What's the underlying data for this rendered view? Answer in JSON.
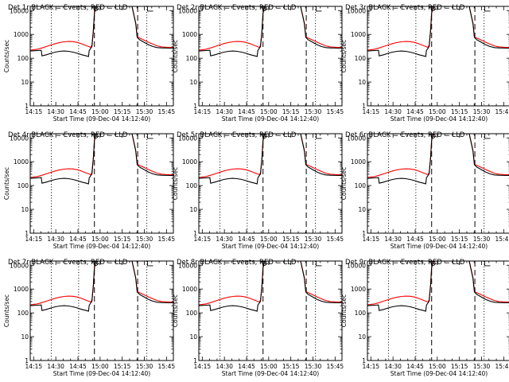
{
  "figure": {
    "panels": [
      "Det 1r",
      "Det 2r",
      "Det 3r",
      "Det 4r",
      "Det 5r",
      "Det 6r",
      "Det 7r",
      "Det 8r",
      "Det 9r"
    ],
    "title_suffix": "BLACK = Events, RED = LLD",
    "ylabel": "Counts/sec",
    "xlabel": "Start Time (09-Dec-04 14:12:40)",
    "xticks": [
      "14:15",
      "14:30",
      "14:45",
      "15:00",
      "15:15",
      "15:30",
      "15:45"
    ],
    "yticks": [
      "1",
      "10",
      "100",
      "1000",
      "10000"
    ],
    "colors": {
      "events": "#000000",
      "lld": "#ff0000",
      "axes": "#000000"
    }
  },
  "chart_data": {
    "type": "line",
    "layout": "3x3 grid of identical panels",
    "title_template": "Det Nr BLACK = Events, RED = LLD",
    "xlabel": "Start Time (09-Dec-04 14:12:40)",
    "ylabel": "Counts/sec",
    "x_units": "minutes since 14:12:40",
    "xlim": [
      0,
      97
    ],
    "ylim": [
      1,
      15000
    ],
    "yscale": "log",
    "xtick_labels": [
      "14:15",
      "14:30",
      "14:45",
      "15:00",
      "15:15",
      "15:30",
      "15:45"
    ],
    "ytick_labels": [
      "1",
      "10",
      "100",
      "1000",
      "10000"
    ],
    "vertical_lines": [
      {
        "x": 14.3,
        "style": "dotted"
      },
      {
        "x": 32.8,
        "style": "dotted"
      },
      {
        "x": 43.5,
        "style": "dashed"
      },
      {
        "x": 72.8,
        "style": "dashed"
      },
      {
        "x": 79.0,
        "style": "dotted"
      }
    ],
    "series": [
      {
        "name": "LLD",
        "color": "#ff0000",
        "x": [
          0,
          2,
          5,
          8,
          11,
          14,
          17,
          20,
          23,
          26,
          29,
          32,
          35,
          38,
          41,
          41.8,
          42.8,
          43.5,
          44.5,
          46,
          50,
          55,
          60,
          65,
          69,
          71.5,
          72.5,
          74,
          77,
          80,
          83,
          86,
          89,
          92,
          95,
          97
        ],
        "y": [
          220,
          225,
          240,
          270,
          310,
          360,
          410,
          455,
          490,
          505,
          495,
          460,
          400,
          335,
          285,
          350,
          1500,
          8000,
          15000,
          15000,
          15000,
          15000,
          15000,
          15000,
          15000,
          3000,
          800,
          700,
          580,
          470,
          390,
          330,
          300,
          290,
          285,
          280
        ]
      },
      {
        "name": "Events",
        "color": "#000000",
        "x": [
          0,
          2,
          5,
          7.5,
          8,
          11,
          14,
          17,
          20,
          23,
          26,
          29,
          32,
          35,
          38,
          39.5,
          40,
          41.8,
          42.8,
          43.5,
          44.5,
          46,
          50,
          55,
          60,
          65,
          69,
          71.5,
          72.5,
          74,
          77,
          80,
          83,
          86,
          89,
          92,
          95,
          97
        ],
        "y": [
          200,
          205,
          210,
          215,
          125,
          140,
          160,
          180,
          195,
          200,
          195,
          180,
          160,
          140,
          125,
          118,
          210,
          310,
          1400,
          7500,
          15000,
          15000,
          15000,
          15000,
          15000,
          15000,
          15000,
          2800,
          750,
          600,
          470,
          370,
          310,
          280,
          270,
          268,
          265,
          265
        ]
      }
    ],
    "markers": [
      {
        "shape": "circle",
        "x": 44.5,
        "y": 12000
      },
      {
        "shape": "corner-bracket",
        "x": 79.5,
        "y": 12000
      }
    ]
  }
}
